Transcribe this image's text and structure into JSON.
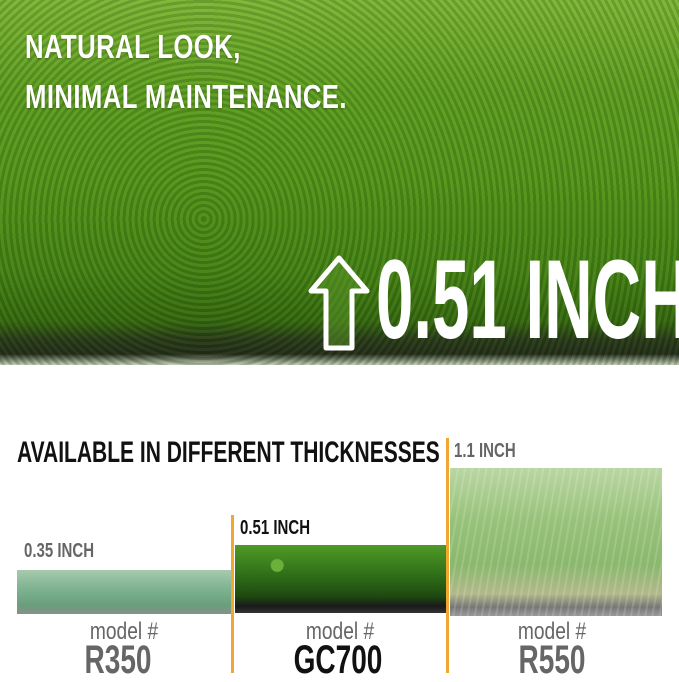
{
  "hero": {
    "headline_line1": "NATURAL LOOK,",
    "headline_line2": "MINIMAL MAINTENANCE.",
    "thickness": "0.51 INCH",
    "icon": "up-arrow-icon"
  },
  "comparison": {
    "title": "AVAILABLE IN DIFFERENT THICKNESSES",
    "accent_color": "#f0a830",
    "models": [
      {
        "thickness": "0.35 INCH",
        "model_label": "model #",
        "model": "R350"
      },
      {
        "thickness": "0.51 INCH",
        "model_label": "model #",
        "model": "GC700"
      },
      {
        "thickness": "1.1 INCH",
        "model_label": "model #",
        "model": "R550"
      }
    ]
  }
}
